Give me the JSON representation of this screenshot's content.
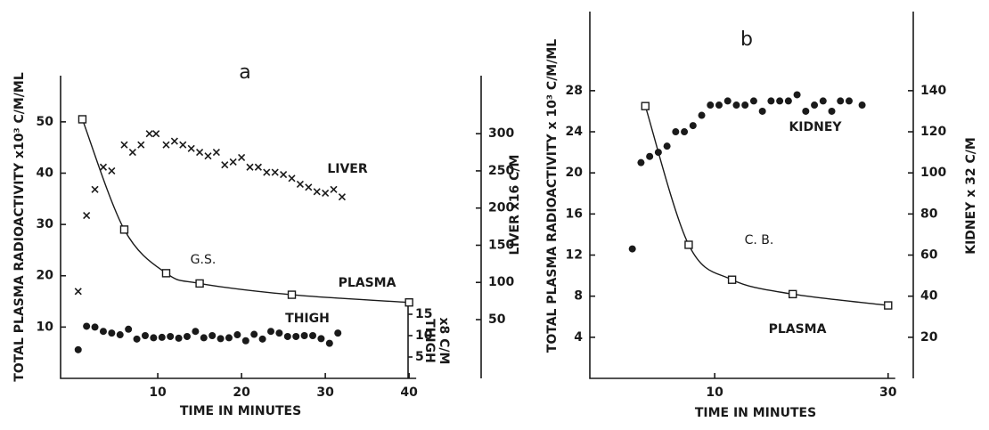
{
  "chart_data": [
    {
      "type": "scatter",
      "panel": "a",
      "xlabel": "TIME IN MINUTES",
      "ylabel": "TOTAL PLASMA RADIOACTIVITY x10³ C/M/ML",
      "y2label": "LIVER x16 C/M",
      "y3label": [
        "THIGH",
        "x8 C/M"
      ],
      "annotations": [
        "G.S."
      ],
      "xlim": [
        -1.6,
        48.6
      ],
      "xticks": [
        10,
        20,
        30,
        40
      ],
      "ylim": [
        0,
        59
      ],
      "yticks": [
        10,
        20,
        30,
        40,
        50
      ],
      "y2lim": [
        -29,
        378
      ],
      "y2ticks": [
        50,
        100,
        150,
        200,
        250,
        300
      ],
      "y3lim": [
        0,
        17.5
      ],
      "y3ticks": [
        5,
        10,
        15
      ],
      "series": [
        {
          "name": "PLASMA",
          "color": "#1a1a1a",
          "marker": "square",
          "line": true,
          "axis": "y",
          "x": [
            1,
            6,
            11,
            15,
            26,
            40
          ],
          "values": [
            50.5,
            29,
            20.5,
            18.5,
            16.3,
            14.8
          ]
        },
        {
          "name": "LIVER",
          "color": "#1a1a1a",
          "marker": "x",
          "line": false,
          "axis": "y2",
          "x": [
            0.5,
            1.5,
            2.5,
            3.5,
            4.5,
            6,
            7,
            8,
            9,
            9.8,
            11,
            12,
            13,
            14,
            15,
            16,
            17,
            18,
            19,
            20,
            21,
            22,
            23,
            24,
            25,
            26,
            27,
            28,
            29,
            30,
            31,
            32
          ],
          "values": [
            88,
            190,
            225,
            255,
            250,
            285,
            275,
            285,
            300,
            300,
            285,
            290,
            285,
            280,
            275,
            270,
            275,
            258,
            262,
            268,
            255,
            255,
            248,
            248,
            245,
            240,
            232,
            228,
            222,
            220,
            225,
            215
          ]
        },
        {
          "name": "THIGH",
          "color": "#1a1a1a",
          "marker": "dot",
          "line": false,
          "axis": "y3",
          "x": [
            0.5,
            1.5,
            2.5,
            3.5,
            4.5,
            5.5,
            6.5,
            7.5,
            8.5,
            9.5,
            10.5,
            11.5,
            12.5,
            13.5,
            14.5,
            15.5,
            16.5,
            17.5,
            18.5,
            19.5,
            20.5,
            21.5,
            22.5,
            23.5,
            24.5,
            25.5,
            26.5,
            27.5,
            28.5,
            29.5,
            30.5,
            31.5
          ],
          "values": [
            6.7,
            12.2,
            12,
            11,
            10.6,
            10.2,
            11.5,
            9.2,
            10,
            9.5,
            9.6,
            9.8,
            9.4,
            9.8,
            11,
            9.5,
            10,
            9.3,
            9.5,
            10.2,
            8.8,
            10.3,
            9.2,
            11,
            10.6,
            9.8,
            9.8,
            10,
            10,
            9.3,
            8.2,
            10.6
          ]
        }
      ]
    },
    {
      "type": "scatter",
      "panel": "b",
      "xlabel": "TIME IN MINUTES",
      "ylabel": "TOTAL PLASMA RADIOACTIVITY x 10³ C/M/ML",
      "y2label": "KIDNEY x 32 C/M",
      "annotations": [
        "C. B."
      ],
      "xlim": [
        -4.4,
        32.9
      ],
      "xticks": [
        10,
        30
      ],
      "ylim": [
        0,
        35.7
      ],
      "yticks": [
        4,
        8,
        12,
        16,
        20,
        24,
        28
      ],
      "y2lim": [
        0,
        178.5
      ],
      "y2ticks": [
        20,
        40,
        60,
        80,
        100,
        120,
        140
      ],
      "series": [
        {
          "name": "KIDNEY",
          "color": "#1a1a1a",
          "marker": "dot",
          "line": false,
          "axis": "y2",
          "x": [
            0.5,
            1.5,
            2.5,
            3.5,
            4.5,
            5.5,
            6.5,
            7.5,
            8.5,
            9.5,
            10.5,
            11.5,
            12.5,
            13.5,
            14.5,
            15.5,
            16.5,
            17.5,
            18.5,
            19.5,
            20.5,
            21.5,
            22.5,
            23.5,
            24.5,
            25.5,
            27
          ],
          "values": [
            63,
            105,
            108,
            110,
            113,
            120,
            120,
            123,
            128,
            133,
            133,
            135,
            133,
            133,
            135,
            130,
            135,
            135,
            135,
            138,
            130,
            133,
            135,
            130,
            135,
            135,
            133
          ]
        },
        {
          "name": "PLASMA",
          "color": "#1a1a1a",
          "marker": "square",
          "line": true,
          "axis": "y",
          "x": [
            2,
            7,
            12,
            19,
            30
          ],
          "values": [
            26.5,
            13,
            9.6,
            8.2,
            7.1
          ]
        }
      ]
    }
  ]
}
